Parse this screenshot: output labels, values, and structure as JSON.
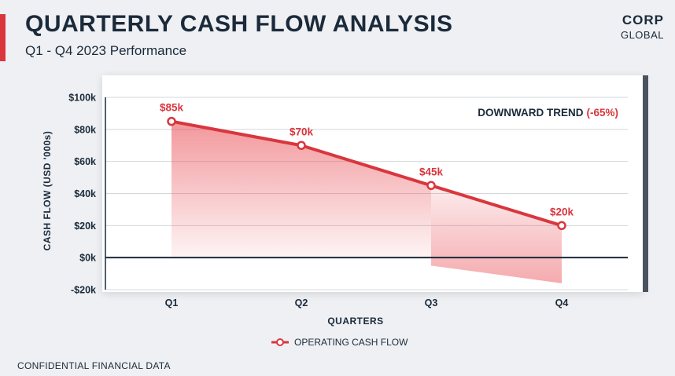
{
  "header": {
    "title": "QUARTERLY CASH FLOW ANALYSIS",
    "subtitle": "Q1 - Q4 2023 Performance"
  },
  "logo": {
    "main": "CORP",
    "sub": "GLOBAL"
  },
  "footer": {
    "text": "CONFIDENTIAL FINANCIAL DATA"
  },
  "colors": {
    "accent": "#d9363e",
    "navy": "#1b2a3a"
  },
  "chart_data": {
    "type": "line",
    "categories": [
      "Q1",
      "Q2",
      "Q3",
      "Q4"
    ],
    "series": [
      {
        "name": "OPERATING CASH FLOW",
        "values": [
          85,
          70,
          45,
          20
        ],
        "labels": [
          "$85k",
          "$70k",
          "$45k",
          "$20k"
        ],
        "color": "#d9363e"
      }
    ],
    "xlabel": "QUARTERS",
    "ylabel": "CASH FLOW (USD '000s)",
    "ylim": [
      -20,
      100
    ],
    "yticks": [
      100,
      80,
      60,
      40,
      20,
      0,
      -20
    ],
    "ytick_labels": [
      "$100k",
      "$80k",
      "$60k",
      "$40k",
      "$20k",
      "$0k",
      "-$20k"
    ],
    "grid": true,
    "legend": "bottom-center",
    "annotation": {
      "text": "DOWNWARD TREND",
      "highlight": "(-65%)"
    }
  }
}
